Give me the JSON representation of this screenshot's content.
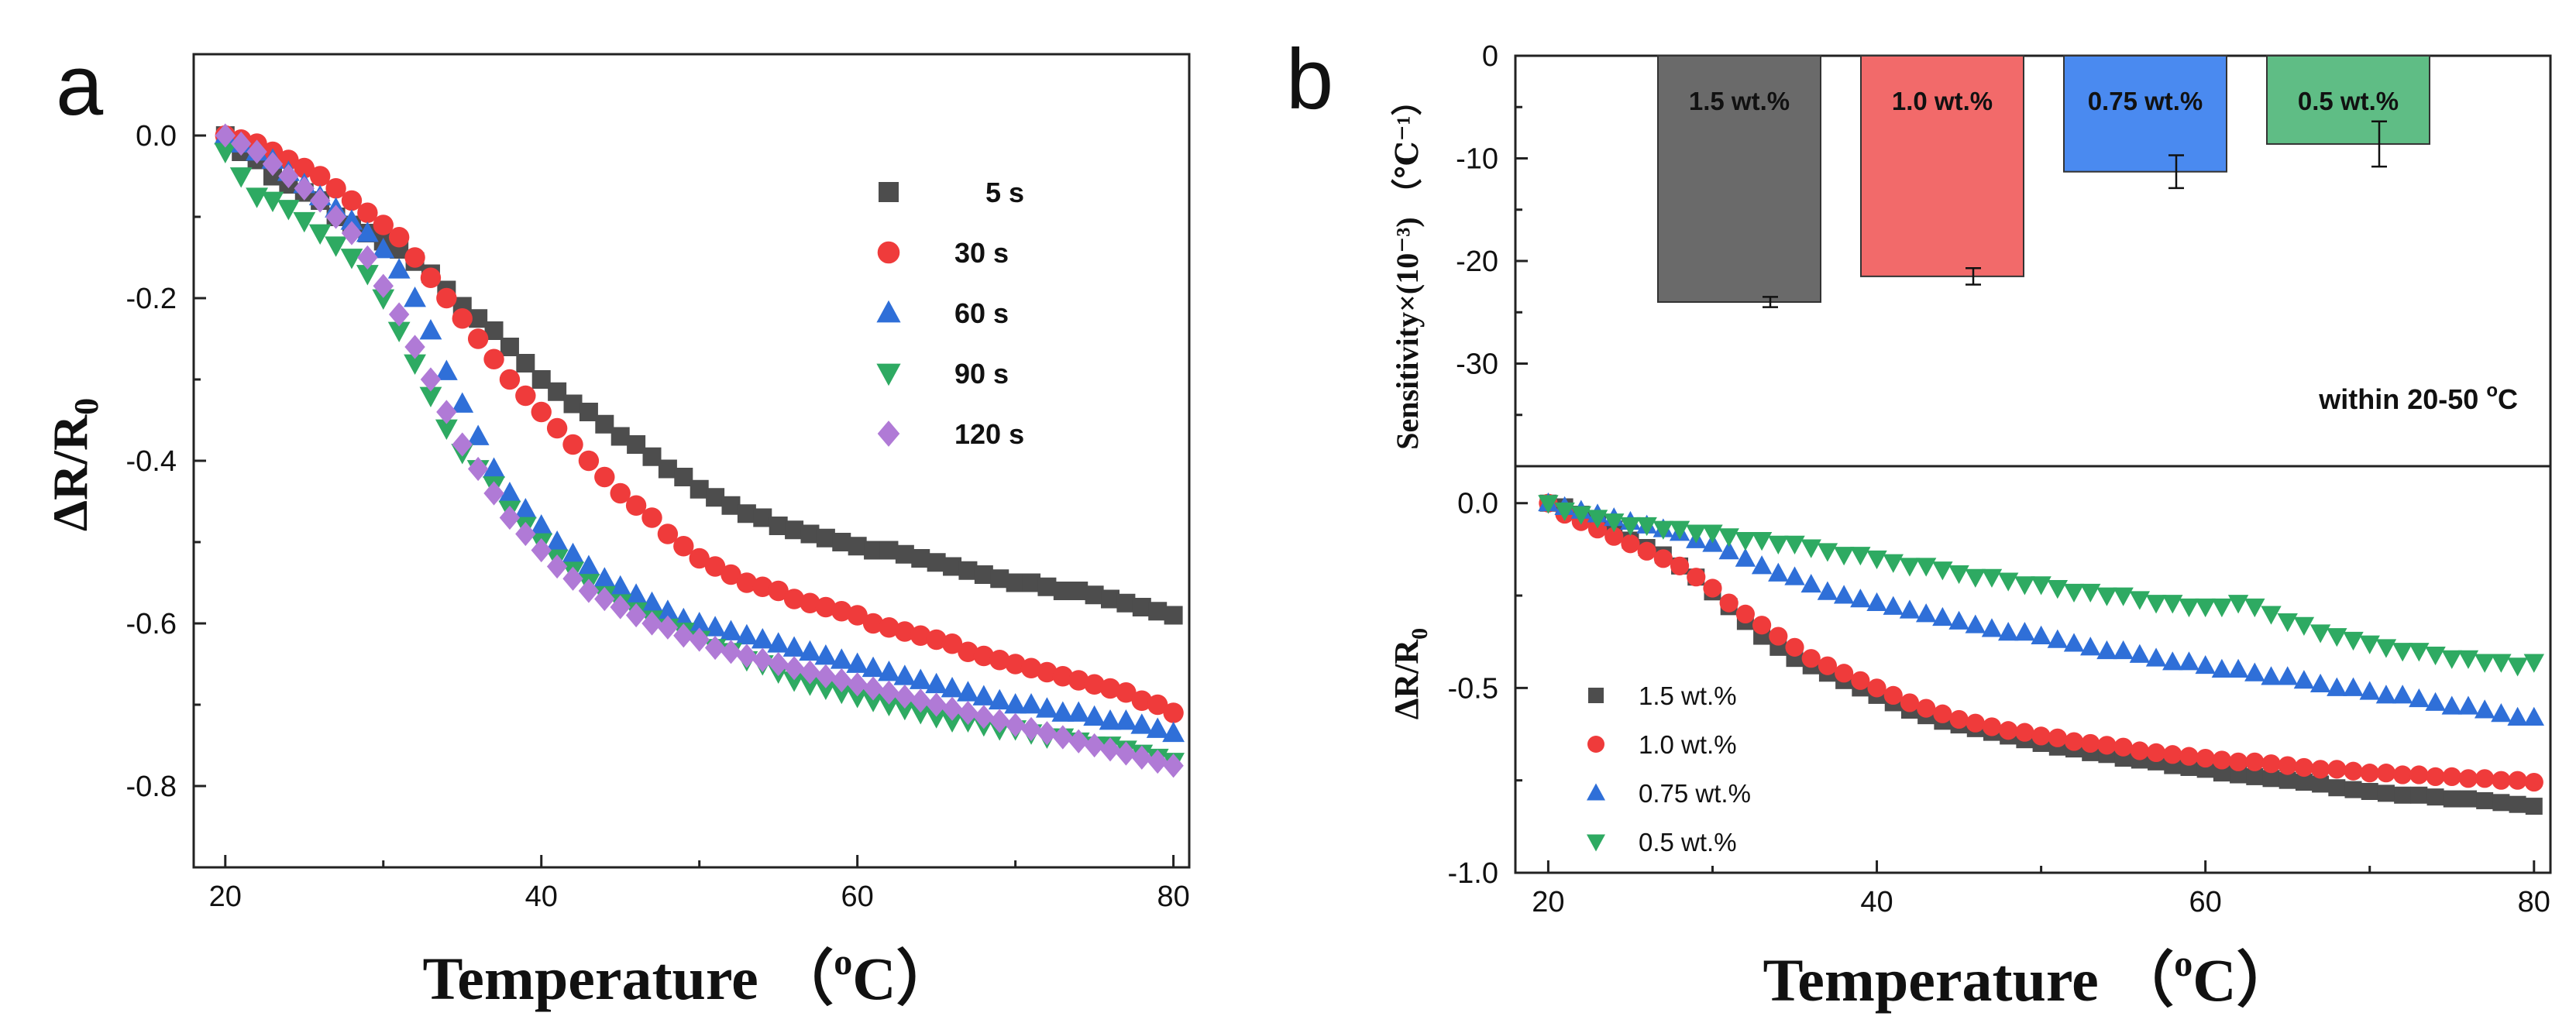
{
  "colors": {
    "black": "#4d4d4d",
    "red": "#ef3b3b",
    "blue": "#2f6fd8",
    "green": "#2eaa62",
    "purple": "#b07ad6",
    "bar_gray": "#6a6a6a",
    "bar_red": "#f26a6a",
    "bar_blue": "#4a8af0",
    "bar_green": "#5fbd85"
  },
  "chart_data": [
    {
      "id": "a",
      "type": "scatter",
      "panel_label": "a",
      "xlabel": "Temperature （",
      "xlabel_unit_sup": "o",
      "xlabel_unit": "C）",
      "ylabel_main": "ΔR/R",
      "ylabel_sub": "0",
      "xlim": [
        18,
        81
      ],
      "ylim": [
        -0.9,
        0.1
      ],
      "xticks": [
        "20",
        "40",
        "60",
        "80"
      ],
      "yticks": [
        "0.0",
        "-0.2",
        "-0.4",
        "-0.6",
        "-0.8"
      ],
      "x": [
        20,
        21,
        22,
        23,
        24,
        25,
        26,
        27,
        28,
        29,
        30,
        31,
        32,
        33,
        34,
        35,
        36,
        37,
        38,
        39,
        40,
        41,
        42,
        43,
        44,
        45,
        46,
        47,
        48,
        49,
        50,
        51,
        52,
        53,
        54,
        55,
        56,
        57,
        58,
        59,
        60,
        61,
        62,
        63,
        64,
        65,
        66,
        67,
        68,
        69,
        70,
        71,
        72,
        73,
        74,
        75,
        76,
        77,
        78,
        79,
        80
      ],
      "series": [
        {
          "name": "5 s",
          "legend": "5 s",
          "marker": "square",
          "color_key": "black",
          "values": [
            0.0,
            -0.02,
            -0.03,
            -0.05,
            -0.06,
            -0.07,
            -0.08,
            -0.1,
            -0.11,
            -0.12,
            -0.13,
            -0.14,
            -0.155,
            -0.17,
            -0.19,
            -0.21,
            -0.225,
            -0.24,
            -0.26,
            -0.28,
            -0.3,
            -0.315,
            -0.33,
            -0.34,
            -0.355,
            -0.37,
            -0.38,
            -0.395,
            -0.41,
            -0.42,
            -0.435,
            -0.445,
            -0.455,
            -0.465,
            -0.47,
            -0.48,
            -0.485,
            -0.49,
            -0.495,
            -0.5,
            -0.505,
            -0.51,
            -0.51,
            -0.515,
            -0.52,
            -0.525,
            -0.53,
            -0.535,
            -0.54,
            -0.545,
            -0.55,
            -0.55,
            -0.555,
            -0.56,
            -0.56,
            -0.565,
            -0.57,
            -0.575,
            -0.58,
            -0.585,
            -0.59
          ]
        },
        {
          "name": "30 s",
          "legend": "30 s",
          "marker": "circle",
          "color_key": "red",
          "values": [
            0.0,
            -0.005,
            -0.01,
            -0.02,
            -0.03,
            -0.04,
            -0.05,
            -0.065,
            -0.08,
            -0.095,
            -0.11,
            -0.125,
            -0.15,
            -0.175,
            -0.2,
            -0.225,
            -0.25,
            -0.275,
            -0.3,
            -0.32,
            -0.34,
            -0.36,
            -0.38,
            -0.4,
            -0.42,
            -0.44,
            -0.455,
            -0.47,
            -0.49,
            -0.505,
            -0.52,
            -0.53,
            -0.54,
            -0.55,
            -0.555,
            -0.56,
            -0.57,
            -0.575,
            -0.58,
            -0.585,
            -0.59,
            -0.6,
            -0.605,
            -0.61,
            -0.615,
            -0.62,
            -0.625,
            -0.635,
            -0.64,
            -0.645,
            -0.65,
            -0.655,
            -0.66,
            -0.665,
            -0.67,
            -0.675,
            -0.68,
            -0.685,
            -0.695,
            -0.7,
            -0.71
          ]
        },
        {
          "name": "60 s",
          "legend": "60 s",
          "marker": "triangle-up",
          "color_key": "blue",
          "values": [
            0.0,
            -0.01,
            -0.02,
            -0.03,
            -0.045,
            -0.06,
            -0.075,
            -0.09,
            -0.105,
            -0.12,
            -0.14,
            -0.165,
            -0.2,
            -0.24,
            -0.29,
            -0.33,
            -0.37,
            -0.41,
            -0.44,
            -0.46,
            -0.48,
            -0.5,
            -0.515,
            -0.53,
            -0.545,
            -0.555,
            -0.565,
            -0.575,
            -0.585,
            -0.595,
            -0.6,
            -0.605,
            -0.61,
            -0.615,
            -0.62,
            -0.625,
            -0.63,
            -0.635,
            -0.64,
            -0.645,
            -0.65,
            -0.655,
            -0.66,
            -0.665,
            -0.67,
            -0.675,
            -0.68,
            -0.685,
            -0.69,
            -0.695,
            -0.7,
            -0.7,
            -0.705,
            -0.71,
            -0.71,
            -0.715,
            -0.72,
            -0.72,
            -0.725,
            -0.73,
            -0.735
          ]
        },
        {
          "name": "90 s",
          "legend": "90 s",
          "marker": "triangle-down",
          "color_key": "green",
          "values": [
            -0.02,
            -0.05,
            -0.075,
            -0.08,
            -0.09,
            -0.105,
            -0.12,
            -0.135,
            -0.15,
            -0.17,
            -0.2,
            -0.24,
            -0.28,
            -0.32,
            -0.36,
            -0.39,
            -0.41,
            -0.43,
            -0.46,
            -0.48,
            -0.5,
            -0.52,
            -0.535,
            -0.55,
            -0.565,
            -0.575,
            -0.585,
            -0.595,
            -0.605,
            -0.61,
            -0.62,
            -0.63,
            -0.635,
            -0.645,
            -0.65,
            -0.66,
            -0.67,
            -0.675,
            -0.68,
            -0.685,
            -0.69,
            -0.695,
            -0.7,
            -0.705,
            -0.71,
            -0.715,
            -0.72,
            -0.72,
            -0.725,
            -0.73,
            -0.73,
            -0.735,
            -0.74,
            -0.74,
            -0.745,
            -0.75,
            -0.75,
            -0.755,
            -0.76,
            -0.765,
            -0.77
          ]
        },
        {
          "name": "120 s",
          "legend": "120 s",
          "marker": "diamond",
          "color_key": "purple",
          "values": [
            0.0,
            -0.01,
            -0.02,
            -0.035,
            -0.05,
            -0.065,
            -0.08,
            -0.1,
            -0.12,
            -0.15,
            -0.185,
            -0.22,
            -0.26,
            -0.3,
            -0.34,
            -0.38,
            -0.41,
            -0.44,
            -0.47,
            -0.49,
            -0.51,
            -0.53,
            -0.545,
            -0.56,
            -0.57,
            -0.58,
            -0.59,
            -0.6,
            -0.605,
            -0.615,
            -0.62,
            -0.63,
            -0.635,
            -0.64,
            -0.645,
            -0.65,
            -0.655,
            -0.66,
            -0.665,
            -0.67,
            -0.675,
            -0.68,
            -0.685,
            -0.69,
            -0.695,
            -0.7,
            -0.705,
            -0.71,
            -0.715,
            -0.72,
            -0.725,
            -0.73,
            -0.735,
            -0.74,
            -0.745,
            -0.75,
            -0.755,
            -0.76,
            -0.765,
            -0.77,
            -0.775
          ]
        }
      ]
    },
    {
      "id": "b_top",
      "type": "bar",
      "panel_label": "b",
      "ylabel": "Sensitivity×(10⁻³) （℃⁻¹）",
      "ylim": [
        -40,
        0
      ],
      "yticks": [
        "0",
        "-10",
        "-20",
        "-30"
      ],
      "annotation": "within 20-50 °C",
      "categories": [
        "1.5 wt.%",
        "1.0 wt.%",
        "0.75 wt.%",
        "0.5 wt.%"
      ],
      "values": [
        -24.0,
        -21.5,
        -11.3,
        -8.6
      ],
      "errors": [
        0.5,
        0.8,
        1.6,
        2.2
      ],
      "color_keys": [
        "bar_gray",
        "bar_red",
        "bar_blue",
        "bar_green"
      ]
    },
    {
      "id": "b_bottom",
      "type": "scatter",
      "xlabel": "Temperature （",
      "xlabel_unit_sup": "o",
      "xlabel_unit": "C）",
      "ylabel_main": "ΔR/R",
      "ylabel_sub": "0",
      "xlim": [
        18,
        81
      ],
      "ylim": [
        -1.0,
        0.1
      ],
      "xticks": [
        "20",
        "40",
        "60",
        "80"
      ],
      "yticks": [
        "0.0",
        "-0.5",
        "-1.0"
      ],
      "x": [
        20,
        21,
        22,
        23,
        24,
        25,
        26,
        27,
        28,
        29,
        30,
        31,
        32,
        33,
        34,
        35,
        36,
        37,
        38,
        39,
        40,
        41,
        42,
        43,
        44,
        45,
        46,
        47,
        48,
        49,
        50,
        51,
        52,
        53,
        54,
        55,
        56,
        57,
        58,
        59,
        60,
        61,
        62,
        63,
        64,
        65,
        66,
        67,
        68,
        69,
        70,
        71,
        72,
        73,
        74,
        75,
        76,
        77,
        78,
        79,
        80
      ],
      "series": [
        {
          "name": "1.5 wt.%",
          "legend": "1.5 wt.%",
          "marker": "square",
          "color_key": "black",
          "values": [
            0.0,
            -0.01,
            -0.03,
            -0.05,
            -0.07,
            -0.1,
            -0.12,
            -0.14,
            -0.17,
            -0.2,
            -0.24,
            -0.28,
            -0.32,
            -0.36,
            -0.39,
            -0.42,
            -0.44,
            -0.46,
            -0.48,
            -0.5,
            -0.52,
            -0.54,
            -0.56,
            -0.575,
            -0.59,
            -0.6,
            -0.61,
            -0.62,
            -0.63,
            -0.64,
            -0.65,
            -0.66,
            -0.665,
            -0.675,
            -0.68,
            -0.69,
            -0.695,
            -0.7,
            -0.71,
            -0.715,
            -0.72,
            -0.73,
            -0.735,
            -0.74,
            -0.745,
            -0.75,
            -0.755,
            -0.76,
            -0.77,
            -0.775,
            -0.78,
            -0.785,
            -0.79,
            -0.79,
            -0.795,
            -0.8,
            -0.8,
            -0.805,
            -0.81,
            -0.815,
            -0.82
          ]
        },
        {
          "name": "1.0 wt.%",
          "legend": "1.0 wt.%",
          "marker": "circle",
          "color_key": "red",
          "values": [
            0.0,
            -0.03,
            -0.05,
            -0.07,
            -0.09,
            -0.11,
            -0.13,
            -0.15,
            -0.17,
            -0.2,
            -0.23,
            -0.27,
            -0.3,
            -0.33,
            -0.36,
            -0.39,
            -0.42,
            -0.44,
            -0.46,
            -0.48,
            -0.5,
            -0.52,
            -0.54,
            -0.555,
            -0.57,
            -0.585,
            -0.595,
            -0.605,
            -0.615,
            -0.62,
            -0.63,
            -0.635,
            -0.645,
            -0.65,
            -0.655,
            -0.66,
            -0.67,
            -0.675,
            -0.68,
            -0.685,
            -0.69,
            -0.695,
            -0.7,
            -0.7,
            -0.705,
            -0.71,
            -0.715,
            -0.72,
            -0.72,
            -0.725,
            -0.73,
            -0.73,
            -0.735,
            -0.735,
            -0.74,
            -0.74,
            -0.745,
            -0.745,
            -0.75,
            -0.75,
            -0.755
          ]
        },
        {
          "name": "0.75 wt.%",
          "legend": "0.75 wt.%",
          "marker": "triangle-up",
          "color_key": "blue",
          "values": [
            0.0,
            -0.01,
            -0.02,
            -0.03,
            -0.04,
            -0.05,
            -0.06,
            -0.07,
            -0.08,
            -0.1,
            -0.11,
            -0.13,
            -0.15,
            -0.17,
            -0.19,
            -0.2,
            -0.22,
            -0.24,
            -0.25,
            -0.26,
            -0.27,
            -0.28,
            -0.29,
            -0.3,
            -0.31,
            -0.32,
            -0.33,
            -0.34,
            -0.35,
            -0.35,
            -0.36,
            -0.37,
            -0.38,
            -0.39,
            -0.4,
            -0.4,
            -0.41,
            -0.42,
            -0.43,
            -0.43,
            -0.44,
            -0.45,
            -0.45,
            -0.46,
            -0.47,
            -0.47,
            -0.48,
            -0.49,
            -0.5,
            -0.5,
            -0.51,
            -0.52,
            -0.52,
            -0.53,
            -0.54,
            -0.55,
            -0.55,
            -0.56,
            -0.57,
            -0.58,
            -0.58
          ]
        },
        {
          "name": "0.5 wt.%",
          "legend": "0.5 wt.%",
          "marker": "triangle-down",
          "color_key": "green",
          "values": [
            0.0,
            -0.02,
            -0.03,
            -0.04,
            -0.05,
            -0.06,
            -0.06,
            -0.07,
            -0.07,
            -0.08,
            -0.08,
            -0.09,
            -0.1,
            -0.1,
            -0.11,
            -0.11,
            -0.12,
            -0.13,
            -0.14,
            -0.14,
            -0.15,
            -0.16,
            -0.17,
            -0.17,
            -0.18,
            -0.19,
            -0.2,
            -0.2,
            -0.21,
            -0.22,
            -0.22,
            -0.23,
            -0.24,
            -0.24,
            -0.25,
            -0.25,
            -0.26,
            -0.27,
            -0.27,
            -0.28,
            -0.28,
            -0.28,
            -0.27,
            -0.28,
            -0.3,
            -0.32,
            -0.33,
            -0.35,
            -0.36,
            -0.37,
            -0.38,
            -0.39,
            -0.4,
            -0.4,
            -0.41,
            -0.42,
            -0.42,
            -0.43,
            -0.43,
            -0.44,
            -0.43
          ]
        }
      ]
    }
  ]
}
